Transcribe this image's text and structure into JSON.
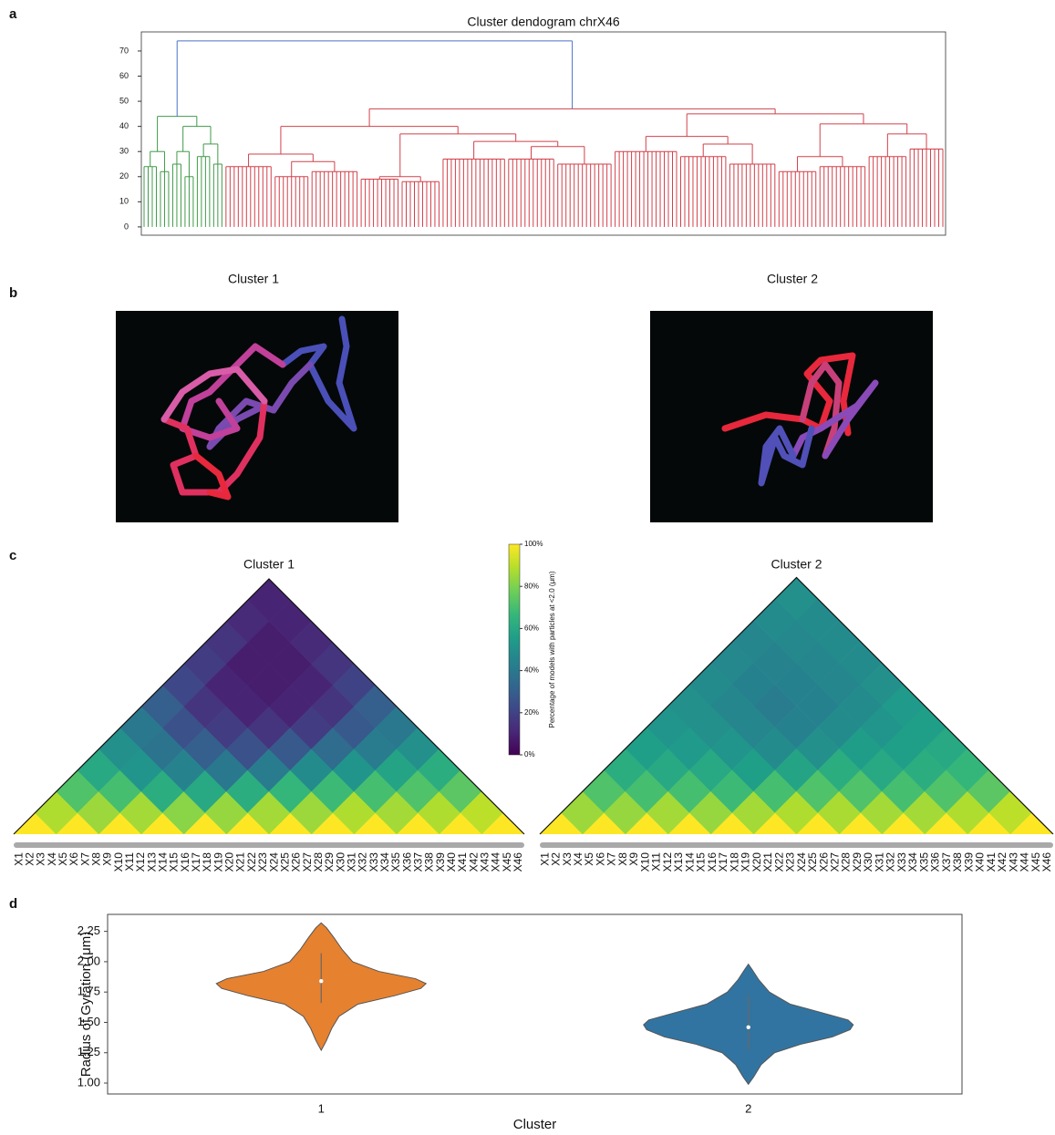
{
  "panels": {
    "letters": [
      "a",
      "b",
      "c",
      "d"
    ],
    "structure_titles": [
      "Cluster 1",
      "Cluster 2"
    ]
  },
  "chart_data": [
    {
      "type": "dendrogram",
      "title": "Cluster dendogram chrX46",
      "ylim": [
        -3.3,
        77.6
      ],
      "yticks": [
        0,
        10,
        20,
        30,
        40,
        50,
        60,
        70
      ],
      "tree": {
        "height": 74,
        "color": "#4a72c8",
        "children": [
          {
            "height": 44,
            "color": "#3f9a48",
            "children": [
              {
                "height": 30,
                "children": [
                  {
                    "height": 24,
                    "leaves": 4
                  },
                  {
                    "height": 22,
                    "leaves": 3
                  }
                ]
              },
              {
                "height": 40,
                "children": [
                  {
                    "height": 30,
                    "children": [
                      {
                        "height": 25,
                        "leaves": 3
                      },
                      {
                        "height": 20,
                        "leaves": 3
                      }
                    ]
                  },
                  {
                    "height": 33,
                    "children": [
                      {
                        "height": 28,
                        "leaves": 4
                      },
                      {
                        "height": 25,
                        "leaves": 3
                      }
                    ]
                  }
                ]
              }
            ]
          },
          {
            "height": 47,
            "color": "#d2404a",
            "children": [
              {
                "height": 40,
                "children": [
                  {
                    "height": 29,
                    "children": [
                      {
                        "height": 24,
                        "leaves": 12
                      },
                      {
                        "height": 26,
                        "children": [
                          {
                            "height": 20,
                            "leaves": 9
                          },
                          {
                            "height": 22,
                            "leaves": 12
                          }
                        ]
                      }
                    ]
                  },
                  {
                    "height": 37,
                    "children": [
                      {
                        "height": 20,
                        "children": [
                          {
                            "height": 19,
                            "leaves": 10
                          },
                          {
                            "height": 18,
                            "leaves": 10
                          }
                        ]
                      },
                      {
                        "height": 34,
                        "children": [
                          {
                            "height": 27,
                            "leaves": 16
                          },
                          {
                            "height": 32,
                            "children": [
                              {
                                "height": 27,
                                "leaves": 12
                              },
                              {
                                "height": 25,
                                "leaves": 14
                              }
                            ]
                          }
                        ]
                      }
                    ]
                  }
                ]
              },
              {
                "height": 45,
                "children": [
                  {
                    "height": 36,
                    "children": [
                      {
                        "height": 30,
                        "leaves": 16
                      },
                      {
                        "height": 33,
                        "children": [
                          {
                            "height": 28,
                            "leaves": 12
                          },
                          {
                            "height": 25,
                            "leaves": 12
                          }
                        ]
                      }
                    ]
                  },
                  {
                    "height": 41,
                    "children": [
                      {
                        "height": 28,
                        "children": [
                          {
                            "height": 22,
                            "leaves": 10
                          },
                          {
                            "height": 24,
                            "leaves": 12
                          }
                        ]
                      },
                      {
                        "height": 37,
                        "children": [
                          {
                            "height": 28,
                            "leaves": 10
                          },
                          {
                            "height": 31,
                            "leaves": 9
                          }
                        ]
                      }
                    ]
                  }
                ]
              }
            ]
          }
        ]
      }
    },
    {
      "type": "heatmap",
      "title": "Cluster 1",
      "labels": [
        "X1",
        "X2",
        "X3",
        "X4",
        "X5",
        "X6",
        "X7",
        "X8",
        "X9",
        "X10",
        "X11",
        "X12",
        "X13",
        "X14",
        "X15",
        "X16",
        "X17",
        "X18",
        "X19",
        "X20",
        "X21",
        "X22",
        "X23",
        "X24",
        "X25",
        "X26",
        "X27",
        "X28",
        "X29",
        "X30",
        "X31",
        "X32",
        "X33",
        "X34",
        "X35",
        "X36",
        "X37",
        "X38",
        "X39",
        "X40",
        "X41",
        "X42",
        "X43",
        "X44",
        "X45",
        "X46"
      ],
      "matrix": [
        [
          88,
          72,
          60,
          50,
          40,
          30,
          22,
          18,
          15,
          12,
          10
        ],
        [
          85,
          70,
          52,
          38,
          25,
          15,
          10,
          8,
          8,
          10
        ],
        [
          86,
          62,
          45,
          30,
          18,
          10,
          8,
          8,
          12
        ],
        [
          82,
          60,
          40,
          25,
          15,
          10,
          10,
          15
        ],
        [
          84,
          62,
          42,
          28,
          18,
          15,
          20
        ],
        [
          86,
          66,
          48,
          35,
          28,
          30
        ],
        [
          85,
          68,
          52,
          42,
          40
        ],
        [
          88,
          70,
          58,
          50
        ],
        [
          86,
          72,
          62
        ],
        [
          88,
          74
        ],
        [
          90
        ]
      ],
      "colorbar": {
        "label": "Percentage of models with particles at <2.0 (μm)",
        "lim": [
          0,
          100
        ],
        "ticks": [
          {
            "value": 0,
            "label": "0%"
          },
          {
            "value": 20,
            "label": "20%"
          },
          {
            "value": 40,
            "label": "40%"
          },
          {
            "value": 60,
            "label": "60%"
          },
          {
            "value": 80,
            "label": "80%"
          },
          {
            "value": 100,
            "label": "100%"
          }
        ]
      }
    },
    {
      "type": "heatmap",
      "title": "Cluster 2",
      "labels": [
        "X1",
        "X2",
        "X3",
        "X4",
        "X5",
        "X6",
        "X7",
        "X8",
        "X9",
        "X10",
        "X11",
        "X12",
        "X13",
        "X14",
        "X15",
        "X16",
        "X17",
        "X18",
        "X19",
        "X20",
        "X21",
        "X22",
        "X23",
        "X24",
        "X25",
        "X26",
        "X27",
        "X28",
        "X29",
        "X30",
        "X31",
        "X32",
        "X33",
        "X34",
        "X35",
        "X36",
        "X37",
        "X38",
        "X39",
        "X40",
        "X41",
        "X42",
        "X43",
        "X44",
        "X45",
        "X46"
      ],
      "matrix": [
        [
          85,
          72,
          62,
          56,
          52,
          50,
          48,
          47,
          46,
          48,
          50
        ],
        [
          84,
          70,
          60,
          54,
          50,
          46,
          44,
          45,
          47,
          48
        ],
        [
          86,
          70,
          60,
          52,
          46,
          42,
          44,
          46,
          48
        ],
        [
          84,
          68,
          56,
          48,
          44,
          44,
          46,
          48
        ],
        [
          86,
          70,
          58,
          50,
          48,
          48,
          50
        ],
        [
          88,
          72,
          62,
          55,
          52,
          54
        ],
        [
          87,
          72,
          60,
          56,
          56
        ],
        [
          86,
          70,
          62,
          60
        ],
        [
          86,
          72,
          66
        ],
        [
          88,
          74
        ],
        [
          90
        ]
      ]
    },
    {
      "type": "violin",
      "x_label": "Cluster",
      "y_label": "Radius of Gyration (μm)",
      "categories": [
        "1",
        "2"
      ],
      "ylim": [
        0.91,
        2.39
      ],
      "yticks": [
        {
          "value": 1.0,
          "label": "1.00"
        },
        {
          "value": 1.25,
          "label": "1.25"
        },
        {
          "value": 1.5,
          "label": "1.50"
        },
        {
          "value": 1.75,
          "label": "1.75"
        },
        {
          "value": 2.0,
          "label": "2.00"
        },
        {
          "value": 2.25,
          "label": "2.25"
        }
      ],
      "series": [
        {
          "color": "#e6812f",
          "y": [
            1.27,
            1.35,
            1.45,
            1.55,
            1.65,
            1.72,
            1.78,
            1.82,
            1.86,
            1.92,
            2.0,
            2.1,
            2.2,
            2.28,
            2.32
          ],
          "density": [
            0,
            0.05,
            0.1,
            0.17,
            0.35,
            0.7,
            0.95,
            1,
            0.9,
            0.55,
            0.3,
            0.2,
            0.12,
            0.05,
            0
          ],
          "median": 1.84,
          "range": [
            1.66,
            2.07
          ]
        },
        {
          "color": "#3274a1",
          "y": [
            0.99,
            1.05,
            1.15,
            1.25,
            1.32,
            1.38,
            1.44,
            1.48,
            1.52,
            1.58,
            1.65,
            1.75,
            1.85,
            1.93,
            1.98
          ],
          "density": [
            0,
            0.05,
            0.12,
            0.25,
            0.5,
            0.8,
            0.97,
            1,
            0.95,
            0.7,
            0.4,
            0.2,
            0.1,
            0.04,
            0
          ],
          "median": 1.46,
          "range": [
            1.27,
            1.72
          ]
        }
      ]
    }
  ]
}
